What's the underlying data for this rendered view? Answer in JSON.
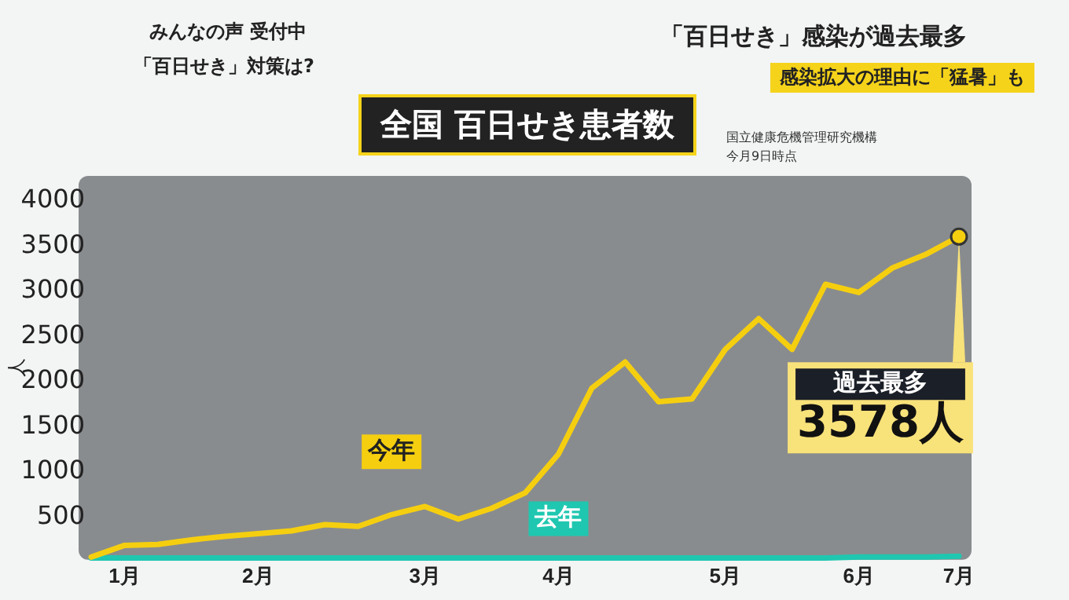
{
  "chart_data": {
    "type": "line",
    "title": "全国 百日せき患者数",
    "ylabel": "人",
    "categories": [
      null,
      "1月",
      null,
      null,
      null,
      "2月",
      null,
      null,
      null,
      null,
      "3月",
      null,
      null,
      null,
      "4月",
      null,
      null,
      null,
      null,
      "5月",
      null,
      null,
      null,
      "6月",
      null,
      null,
      "7月"
    ],
    "series": [
      {
        "name": "今年",
        "color": "#f5cf0f",
        "values": [
          30,
          160,
          170,
          220,
          260,
          290,
          320,
          390,
          370,
          500,
          590,
          450,
          570,
          740,
          1170,
          1900,
          2190,
          1750,
          1780,
          2330,
          2670,
          2330,
          3050,
          2960,
          3230,
          3380,
          3578
        ]
      },
      {
        "name": "去年",
        "color": "#1fc7b0",
        "values": [
          20,
          20,
          20,
          20,
          20,
          20,
          20,
          20,
          20,
          20,
          20,
          20,
          20,
          20,
          20,
          20,
          20,
          20,
          20,
          20,
          20,
          20,
          20,
          30,
          30,
          30,
          40
        ]
      }
    ],
    "ylim": [
      0,
      4250
    ],
    "yticks": [
      500,
      1000,
      1500,
      2000,
      2500,
      3000,
      3500,
      4000
    ],
    "grid": false,
    "legend": false,
    "marker": "none",
    "line_style": "solid",
    "annotations": [
      "みんなの声 受付中",
      "「百日せき」対策は?",
      "「百日せき」感染が過去最多",
      "感染拡大の理由に「猛暑」も",
      "国立健康危機管理研究機構",
      "今月9日時点",
      "過去最多",
      {
        "text": "3578人",
        "x": "7月",
        "y": 3578
      }
    ]
  }
}
